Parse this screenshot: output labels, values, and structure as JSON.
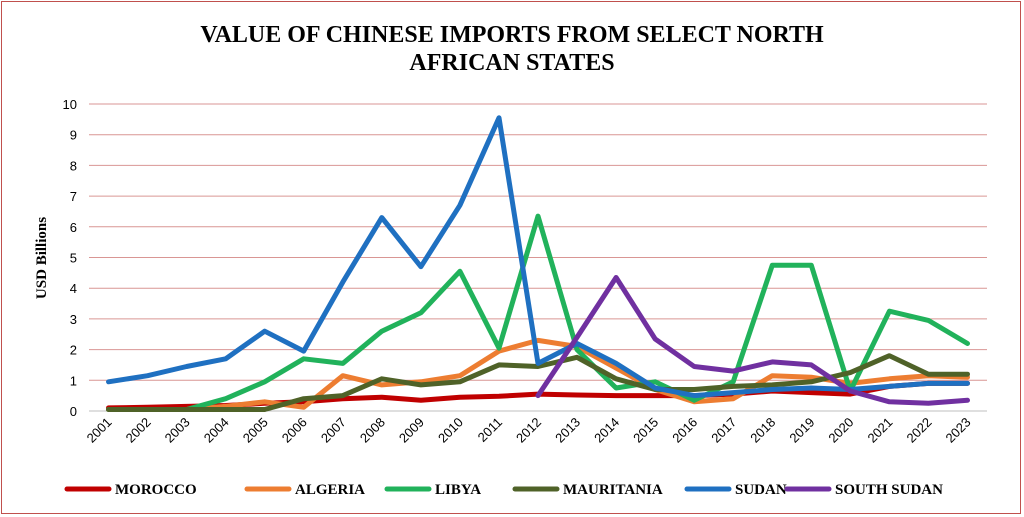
{
  "chart_data": {
    "type": "line",
    "title_line1": "VALUE OF CHINESE IMPORTS FROM SELECT NORTH",
    "title_line2": "AFRICAN STATES",
    "ylabel": "USD Billions",
    "xlabel": "",
    "ylim": [
      0,
      10
    ],
    "yticks": [
      0,
      1,
      2,
      3,
      4,
      5,
      6,
      7,
      8,
      9,
      10
    ],
    "grid": true,
    "legend_position": "bottom",
    "categories": [
      "2001",
      "2002",
      "2003",
      "2004",
      "2005",
      "2006",
      "2007",
      "2008",
      "2009",
      "2010",
      "2011",
      "2012",
      "2013",
      "2014",
      "2015",
      "2016",
      "2017",
      "2018",
      "2019",
      "2020",
      "2021",
      "2022",
      "2023"
    ],
    "series": [
      {
        "name": "MOROCCO",
        "color": "#c00000",
        "values": [
          0.1,
          0.12,
          0.15,
          0.18,
          0.25,
          0.3,
          0.4,
          0.45,
          0.35,
          0.45,
          0.48,
          0.55,
          0.52,
          0.5,
          0.5,
          0.5,
          0.55,
          0.65,
          0.6,
          0.55,
          0.8,
          0.9,
          0.9
        ]
      },
      {
        "name": "ALGERIA",
        "color": "#ed7d31",
        "values": [
          0.05,
          0.05,
          0.05,
          0.15,
          0.3,
          0.12,
          1.15,
          0.85,
          0.95,
          1.15,
          1.95,
          2.3,
          2.1,
          1.4,
          0.7,
          0.3,
          0.4,
          1.15,
          1.1,
          0.9,
          1.05,
          1.15,
          1.1
        ]
      },
      {
        "name": "LIBYA",
        "color": "#21b25b",
        "values": [
          0.05,
          0.05,
          0.05,
          0.4,
          0.95,
          1.7,
          1.55,
          2.6,
          3.2,
          4.55,
          2.05,
          6.35,
          2.0,
          0.75,
          0.95,
          0.35,
          0.95,
          4.75,
          4.75,
          0.65,
          3.25,
          2.95,
          2.2
        ]
      },
      {
        "name": "MAURITANIA",
        "color": "#4f6228",
        "values": [
          0.05,
          0.05,
          0.05,
          0.05,
          0.05,
          0.4,
          0.5,
          1.05,
          0.85,
          0.95,
          1.5,
          1.45,
          1.75,
          1.05,
          0.7,
          0.7,
          0.8,
          0.85,
          0.95,
          1.25,
          1.8,
          1.2,
          1.2
        ]
      },
      {
        "name": "SUDAN",
        "color": "#1f70c1",
        "values": [
          0.95,
          1.15,
          1.45,
          1.7,
          2.6,
          1.95,
          4.2,
          6.3,
          4.7,
          6.7,
          9.55,
          1.55,
          2.2,
          1.55,
          0.75,
          0.5,
          0.6,
          0.7,
          0.75,
          0.7,
          0.8,
          0.9,
          0.9
        ]
      },
      {
        "name": "SOUTH SUDAN",
        "color": "#7030a0",
        "values": [
          null,
          null,
          null,
          null,
          null,
          null,
          null,
          null,
          null,
          null,
          null,
          0.5,
          2.4,
          4.35,
          2.35,
          1.45,
          1.3,
          1.6,
          1.5,
          0.65,
          0.3,
          0.25,
          0.35
        ]
      }
    ]
  }
}
